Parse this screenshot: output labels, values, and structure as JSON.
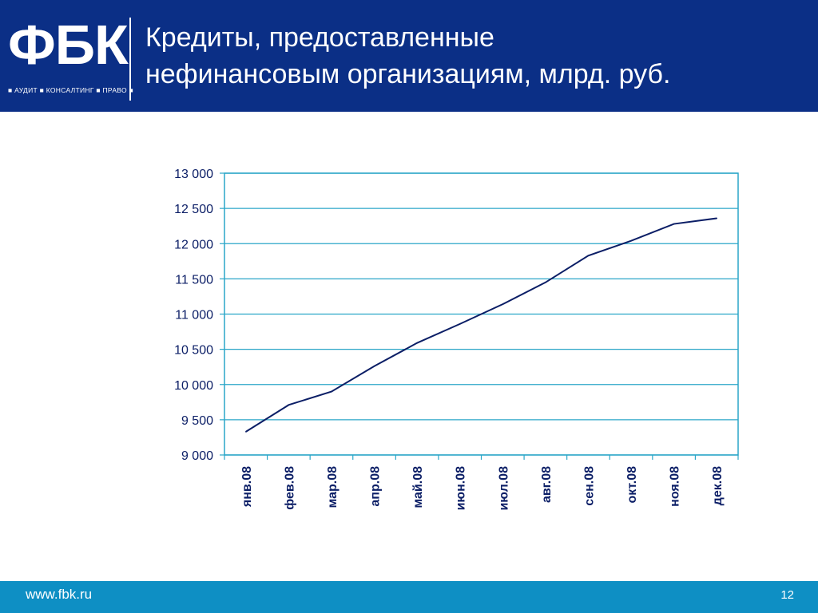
{
  "header": {
    "logo_text": "ФБК",
    "logo_tagline": "■ АУДИТ ■ КОНСАЛТИНГ ■ ПРАВО ■",
    "title_line1": "Кредиты, предоставленные",
    "title_line2": "нефинансовым организациям, млрд. руб."
  },
  "footer": {
    "url": "www.fbk.ru",
    "page_number": "12"
  },
  "colors": {
    "header_bg": "#0b2f86",
    "footer_bg": "#0e8fc4",
    "grid": "#2aa6c8",
    "line": "#0b1e66"
  },
  "chart_data": {
    "type": "line",
    "title": "",
    "xlabel": "",
    "ylabel": "",
    "categories": [
      "янв.08",
      "фев.08",
      "мар.08",
      "апр.08",
      "май.08",
      "июн.08",
      "июл.08",
      "авг.08",
      "сен.08",
      "окт.08",
      "ноя.08",
      "дек.08"
    ],
    "series": [
      {
        "values": [
          9330,
          9710,
          9900,
          10260,
          10590,
          10860,
          11140,
          11450,
          11830,
          12040,
          12280,
          12360
        ]
      }
    ],
    "ylim": [
      9000,
      13000
    ],
    "yticks": [
      9000,
      9500,
      10000,
      10500,
      11000,
      11500,
      12000,
      12500,
      13000
    ],
    "ytick_labels": [
      "9 000",
      "9 500",
      "10 000",
      "10 500",
      "11 000",
      "11 500",
      "12 000",
      "12 500",
      "13 000"
    ],
    "grid": true,
    "legend": "none"
  }
}
